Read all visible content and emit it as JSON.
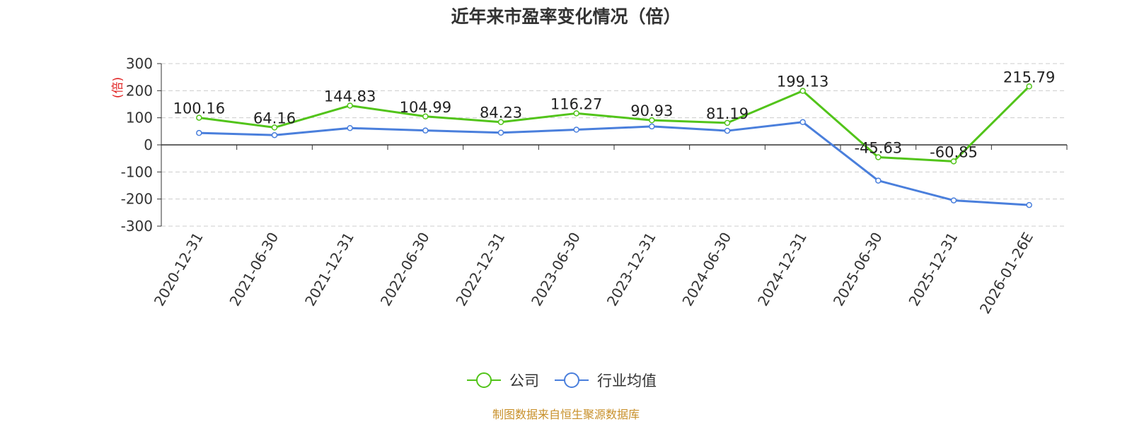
{
  "chart_data": {
    "type": "line",
    "title": "近年来市盈率变化情况（倍）",
    "ylabel": "(倍)",
    "xlabel": "",
    "ylim": [
      -300,
      300
    ],
    "yticks": [
      300,
      200,
      100,
      0,
      -100,
      -200,
      -300
    ],
    "grid": true,
    "legend_position": "bottom-center",
    "categories": [
      "2020-12-31",
      "2021-06-30",
      "2021-12-31",
      "2022-06-30",
      "2022-12-31",
      "2023-06-30",
      "2023-12-31",
      "2024-06-30",
      "2024-12-31",
      "2025-06-30",
      "2025-12-31",
      "2026-01-26E"
    ],
    "series": [
      {
        "name": "公司",
        "color": "#52c41a",
        "values": [
          100.16,
          64.16,
          144.83,
          104.99,
          84.23,
          116.27,
          90.93,
          81.19,
          199.13,
          -45.63,
          -60.85,
          215.79
        ],
        "labels": [
          "100.16",
          "64.16",
          "144.83",
          "104.99",
          "84.23",
          "116.27",
          "90.93",
          "81.19",
          "199.13",
          "-45.63",
          "-60.85",
          "215.79"
        ]
      },
      {
        "name": "行业均值",
        "color": "#4a7fdc",
        "values": [
          44,
          36,
          62,
          53,
          45,
          56,
          68,
          52,
          84,
          -132,
          -205,
          -222
        ]
      }
    ],
    "source": "制图数据来自恒生聚源数据库",
    "source_color": "#c8902a",
    "unit_color": "#e02020"
  }
}
